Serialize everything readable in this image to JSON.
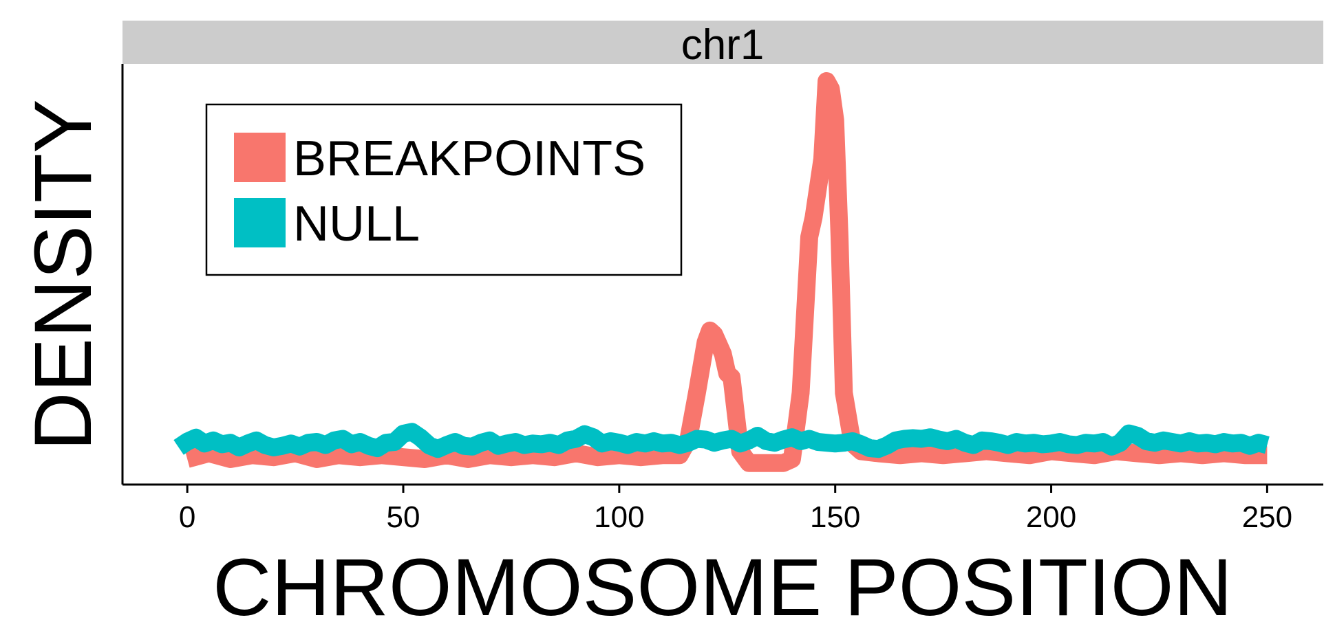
{
  "chart_data": {
    "type": "line",
    "facet_label": "chr1",
    "xlabel": "CHROMOSOME POSITION",
    "ylabel": "DENSITY",
    "xlim": [
      -15,
      263
    ],
    "ylim": [
      0,
      1.0
    ],
    "x_ticks": [
      0,
      50,
      100,
      150,
      200,
      250
    ],
    "x_tick_labels": [
      "0",
      "50",
      "100",
      "150",
      "200",
      "250"
    ],
    "y_ticks_shown": false,
    "grid": false,
    "legend_position": "top-left",
    "series": [
      {
        "name": "BREAKPOINTS",
        "color": "#F8766D",
        "x": [
          0,
          5,
          10,
          15,
          20,
          25,
          30,
          35,
          40,
          45,
          50,
          55,
          60,
          65,
          70,
          75,
          80,
          85,
          90,
          95,
          100,
          105,
          110,
          114,
          116,
          118,
          120,
          121,
          122,
          124,
          125,
          126,
          128,
          130,
          135,
          138,
          140,
          142,
          144,
          145,
          147,
          148,
          149,
          150,
          151,
          152,
          154,
          156,
          160,
          165,
          170,
          175,
          180,
          185,
          190,
          195,
          200,
          205,
          210,
          215,
          220,
          225,
          230,
          235,
          240,
          245,
          250
        ],
        "values": [
          0.03,
          0.045,
          0.03,
          0.04,
          0.035,
          0.045,
          0.03,
          0.04,
          0.035,
          0.04,
          0.035,
          0.03,
          0.04,
          0.03,
          0.04,
          0.035,
          0.04,
          0.035,
          0.045,
          0.035,
          0.04,
          0.035,
          0.04,
          0.04,
          0.08,
          0.2,
          0.33,
          0.36,
          0.35,
          0.3,
          0.25,
          0.24,
          0.05,
          0.02,
          0.02,
          0.02,
          0.03,
          0.2,
          0.6,
          0.65,
          0.8,
          1.0,
          0.98,
          0.9,
          0.6,
          0.2,
          0.07,
          0.05,
          0.045,
          0.04,
          0.045,
          0.04,
          0.045,
          0.05,
          0.045,
          0.04,
          0.05,
          0.045,
          0.04,
          0.05,
          0.045,
          0.04,
          0.045,
          0.04,
          0.045,
          0.04,
          0.04
        ]
      },
      {
        "name": "NULL",
        "color": "#00BFC4",
        "x": [
          -2,
          0,
          2,
          4,
          6,
          8,
          10,
          12,
          14,
          16,
          18,
          20,
          22,
          24,
          26,
          28,
          30,
          32,
          34,
          36,
          38,
          40,
          42,
          44,
          46,
          48,
          50,
          52,
          54,
          56,
          58,
          60,
          62,
          64,
          66,
          68,
          70,
          72,
          74,
          76,
          78,
          80,
          82,
          84,
          86,
          88,
          90,
          92,
          94,
          96,
          98,
          100,
          102,
          104,
          106,
          108,
          110,
          112,
          114,
          116,
          118,
          120,
          122,
          124,
          126,
          128,
          130,
          132,
          134,
          136,
          138,
          140,
          142,
          144,
          146,
          148,
          150,
          152,
          154,
          156,
          158,
          160,
          162,
          164,
          166,
          168,
          170,
          172,
          174,
          176,
          178,
          180,
          182,
          184,
          186,
          188,
          190,
          192,
          194,
          196,
          198,
          200,
          202,
          204,
          206,
          208,
          210,
          212,
          214,
          216,
          218,
          220,
          222,
          224,
          226,
          228,
          230,
          232,
          234,
          236,
          238,
          240,
          242,
          244,
          246,
          248,
          250
        ],
        "values": [
          0.06,
          0.075,
          0.085,
          0.07,
          0.078,
          0.068,
          0.072,
          0.06,
          0.07,
          0.078,
          0.066,
          0.06,
          0.064,
          0.07,
          0.062,
          0.072,
          0.074,
          0.066,
          0.078,
          0.082,
          0.068,
          0.074,
          0.064,
          0.058,
          0.072,
          0.074,
          0.095,
          0.1,
          0.085,
          0.065,
          0.056,
          0.066,
          0.074,
          0.064,
          0.062,
          0.072,
          0.078,
          0.064,
          0.07,
          0.074,
          0.066,
          0.07,
          0.068,
          0.072,
          0.066,
          0.078,
          0.082,
          0.094,
          0.086,
          0.07,
          0.076,
          0.072,
          0.066,
          0.074,
          0.07,
          0.076,
          0.07,
          0.072,
          0.066,
          0.072,
          0.082,
          0.08,
          0.072,
          0.078,
          0.082,
          0.07,
          0.078,
          0.09,
          0.076,
          0.072,
          0.08,
          0.086,
          0.076,
          0.082,
          0.074,
          0.072,
          0.07,
          0.072,
          0.076,
          0.068,
          0.058,
          0.056,
          0.065,
          0.078,
          0.082,
          0.084,
          0.082,
          0.086,
          0.08,
          0.076,
          0.082,
          0.072,
          0.066,
          0.078,
          0.076,
          0.072,
          0.066,
          0.074,
          0.07,
          0.072,
          0.068,
          0.07,
          0.074,
          0.068,
          0.066,
          0.072,
          0.07,
          0.074,
          0.062,
          0.072,
          0.096,
          0.09,
          0.076,
          0.072,
          0.078,
          0.074,
          0.07,
          0.076,
          0.07,
          0.072,
          0.068,
          0.074,
          0.07,
          0.072,
          0.064,
          0.072,
          0.066
        ]
      }
    ]
  }
}
